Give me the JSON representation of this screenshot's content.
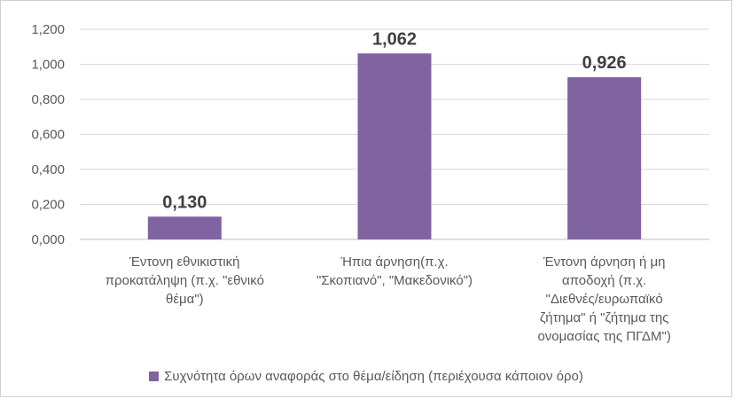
{
  "chart_data": {
    "type": "bar",
    "categories": [
      [
        "Έντονη εθνικιστική",
        "προκατάληψη (π.χ. \"εθνικό",
        "θέμα\")"
      ],
      [
        "Ήπια άρνηση(π.χ.",
        "\"Σκοπιανό\", \"Μακεδονικό\")"
      ],
      [
        "Έντονη άρνηση ή μη",
        "αποδοχή (π.χ.",
        "\"Διεθνές/ευρωπαϊκό",
        "ζήτημα\" ή \"ζήτημα της",
        "ονομασίας της ΠΓΔΜ\")"
      ]
    ],
    "series": [
      {
        "name": "Συχνότητα όρων αναφοράς στο θέμα/είδηση (περιέχουσα κάποιον όρο)",
        "values": [
          0.13,
          1.062,
          0.926
        ],
        "labels": [
          "0,130",
          "1,062",
          "0,926"
        ],
        "color": "#8064a2"
      }
    ],
    "ylim": [
      0,
      1.2
    ],
    "yticks": [
      0,
      0.2,
      0.4,
      0.6,
      0.8,
      1.0,
      1.2
    ],
    "ytick_labels": [
      "0,000",
      "0,200",
      "0,400",
      "0,600",
      "0,800",
      "1,000",
      "1,200"
    ],
    "grid": true,
    "legend_position": "bottom",
    "title": "",
    "xlabel": "",
    "ylabel": ""
  }
}
